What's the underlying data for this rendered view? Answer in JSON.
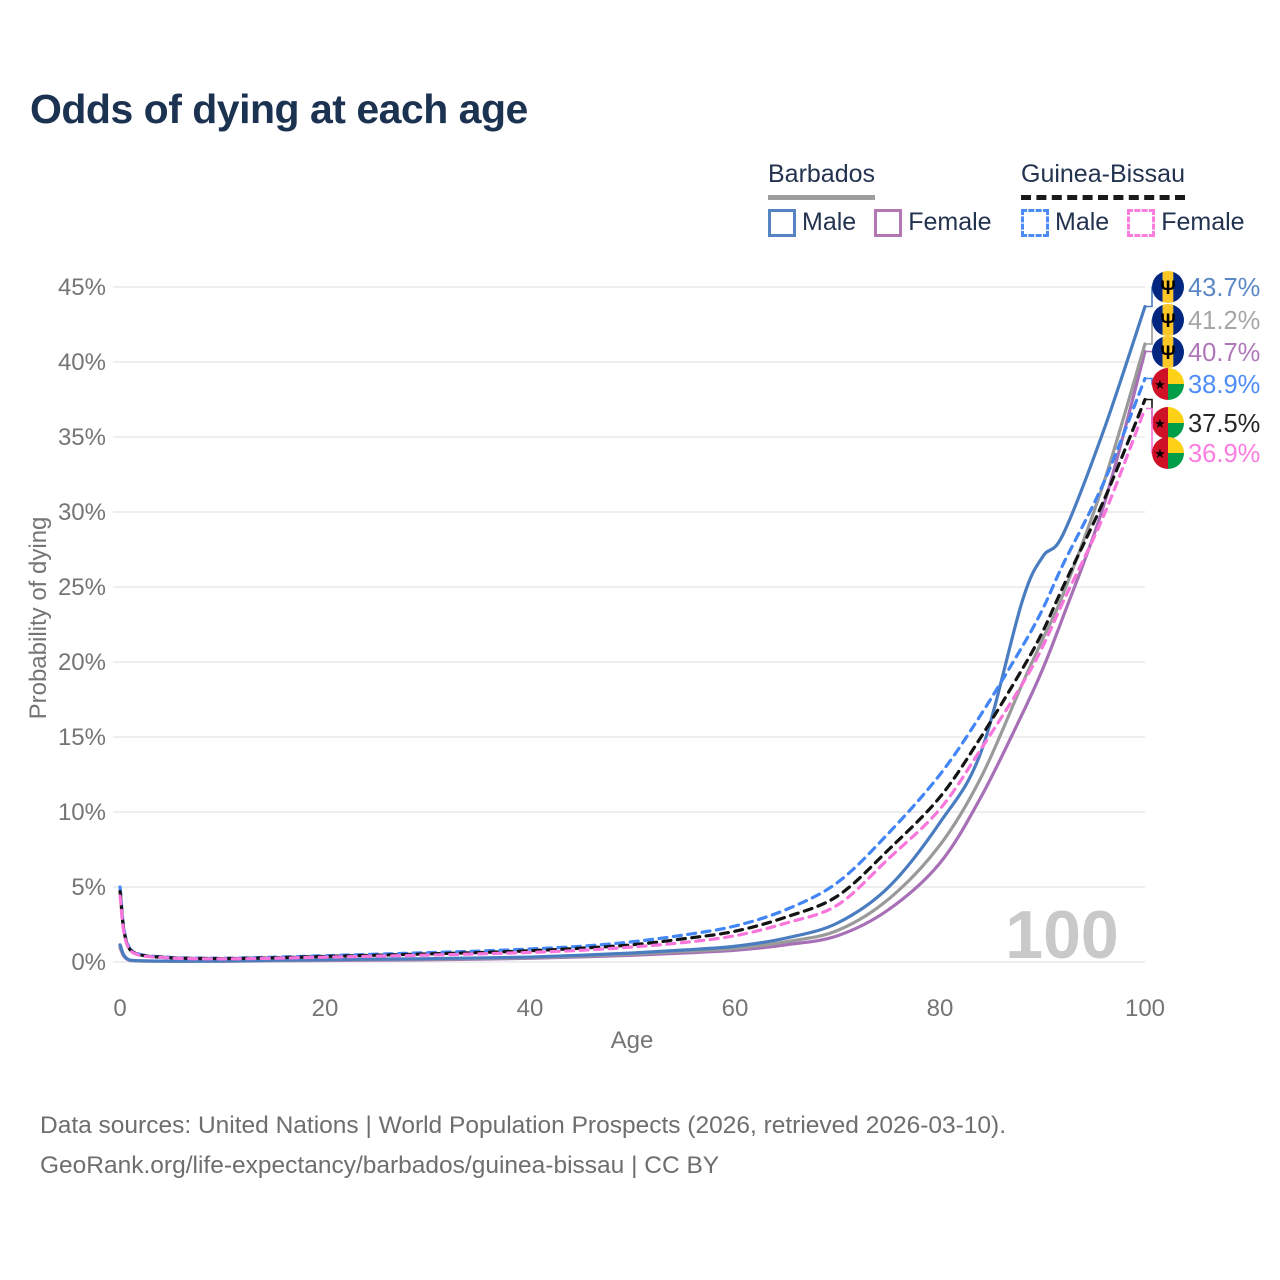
{
  "title": "Odds of dying at each age",
  "legend": {
    "groups": [
      {
        "label": "Barbados",
        "underline_style": "solid",
        "underline_color": "#9e9e9e",
        "items": [
          {
            "label": "Male",
            "swatch_color": "#5585c0",
            "swatch_style": "solid"
          },
          {
            "label": "Female",
            "swatch_color": "#b276b2",
            "swatch_style": "solid"
          }
        ]
      },
      {
        "label": "Guinea-Bissau",
        "underline_style": "dashed",
        "underline_color": "#1a1a1a",
        "items": [
          {
            "label": "Male",
            "swatch_color": "#4b8bf5",
            "swatch_style": "dashed"
          },
          {
            "label": "Female",
            "swatch_color": "#fb7dde",
            "swatch_style": "dashed"
          }
        ]
      }
    ]
  },
  "chart_data": {
    "type": "line",
    "title": "Odds of dying at each age",
    "xlabel": "Age",
    "ylabel": "Probability of dying",
    "xlim": [
      0,
      100
    ],
    "ylim": [
      0,
      45
    ],
    "x_ticks": [
      0,
      20,
      40,
      60,
      80,
      100
    ],
    "y_ticks": [
      0,
      5,
      10,
      15,
      20,
      25,
      30,
      35,
      40,
      45
    ],
    "y_tick_suffix": "%",
    "grid": true,
    "hover_x_label": "100",
    "ages": [
      0,
      1,
      5,
      10,
      15,
      20,
      25,
      30,
      35,
      40,
      45,
      50,
      55,
      60,
      65,
      70,
      75,
      80,
      84,
      88,
      90,
      92,
      96,
      100
    ],
    "series": [
      {
        "name": "Barbados Male",
        "country": "Barbados",
        "sex": "Male",
        "color": "#4a7cc0",
        "dashed": false,
        "flag": "barbados",
        "end_label": "43.7%",
        "end_value": 43.7,
        "label_color": "#5b87c5",
        "values": [
          1.15,
          0.12,
          0.06,
          0.07,
          0.12,
          0.16,
          0.19,
          0.22,
          0.27,
          0.33,
          0.45,
          0.6,
          0.8,
          1.05,
          1.6,
          2.6,
          5.0,
          9.3,
          14.0,
          24.0,
          27.0,
          28.5,
          35.5,
          43.7
        ]
      },
      {
        "name": "Barbados",
        "country": "Barbados",
        "sex": "Both",
        "color": "#9a9a9a",
        "dashed": false,
        "flag": "barbados",
        "end_label": "41.2%",
        "end_value": 41.2,
        "label_color": "#a6a6a6",
        "values": [
          1.05,
          0.11,
          0.05,
          0.06,
          0.1,
          0.13,
          0.16,
          0.19,
          0.23,
          0.29,
          0.39,
          0.52,
          0.7,
          0.9,
          1.35,
          2.1,
          4.2,
          7.8,
          12.3,
          18.5,
          21.5,
          24.5,
          32.0,
          41.2
        ]
      },
      {
        "name": "Barbados Female",
        "country": "Barbados",
        "sex": "Female",
        "color": "#a76fb5",
        "dashed": false,
        "flag": "barbados",
        "end_label": "40.7%",
        "end_value": 40.7,
        "label_color": "#b077ba",
        "values": [
          0.95,
          0.1,
          0.05,
          0.05,
          0.08,
          0.1,
          0.12,
          0.15,
          0.19,
          0.25,
          0.34,
          0.45,
          0.6,
          0.78,
          1.15,
          1.75,
          3.5,
          6.6,
          11.0,
          16.5,
          19.5,
          23.0,
          30.5,
          40.7
        ]
      },
      {
        "name": "Guinea-Bissau Male",
        "country": "Guinea-Bissau",
        "sex": "Male",
        "color": "#4285f4",
        "dashed": true,
        "flag": "guinea-bissau",
        "end_label": "38.9%",
        "end_value": 38.9,
        "label_color": "#4f8df6",
        "values": [
          5.0,
          0.85,
          0.3,
          0.25,
          0.32,
          0.42,
          0.52,
          0.62,
          0.73,
          0.87,
          1.05,
          1.35,
          1.8,
          2.4,
          3.5,
          5.3,
          8.6,
          12.5,
          16.5,
          21.0,
          23.5,
          26.5,
          32.0,
          38.9
        ]
      },
      {
        "name": "Guinea-Bissau",
        "country": "Guinea-Bissau",
        "sex": "Both",
        "color": "#141414",
        "dashed": true,
        "flag": "guinea-bissau",
        "end_label": "37.5%",
        "end_value": 37.5,
        "label_color": "#262626",
        "values": [
          4.7,
          0.8,
          0.28,
          0.23,
          0.28,
          0.37,
          0.45,
          0.54,
          0.63,
          0.75,
          0.92,
          1.15,
          1.55,
          2.05,
          3.0,
          4.4,
          7.5,
          11.0,
          15.0,
          19.5,
          22.0,
          25.0,
          30.8,
          37.5
        ]
      },
      {
        "name": "Guinea-Bissau Female",
        "country": "Guinea-Bissau",
        "sex": "Female",
        "color": "#f875dc",
        "dashed": true,
        "flag": "guinea-bissau",
        "end_label": "36.9%",
        "end_value": 36.9,
        "label_color": "#fb7de0",
        "values": [
          4.4,
          0.75,
          0.26,
          0.21,
          0.25,
          0.32,
          0.39,
          0.46,
          0.54,
          0.64,
          0.78,
          1.0,
          1.3,
          1.75,
          2.6,
          3.8,
          6.9,
          10.2,
          14.2,
          18.5,
          21.0,
          24.0,
          29.8,
          36.9
        ]
      }
    ]
  },
  "footer": {
    "line1": "Data sources: United Nations | World Population Prospects (2026, retrieved 2026-03-10).",
    "line2": "GeoRank.org/life-expectancy/barbados/guinea-bissau | CC BY"
  }
}
